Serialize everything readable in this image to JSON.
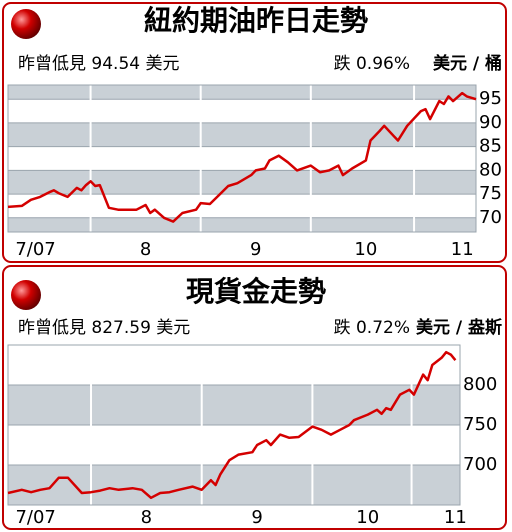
{
  "chart_data": [
    {
      "type": "line",
      "title": "紐約期油昨日走勢",
      "subtitle": "昨曾低見 94.54 美元",
      "change": "跌 0.96%",
      "unit": "美元 / 桶",
      "x": [
        0,
        3,
        5,
        7,
        9,
        10,
        11,
        13,
        15,
        16,
        17,
        18,
        19,
        20,
        22,
        24,
        28,
        30,
        31,
        32,
        34,
        36,
        38,
        41,
        42,
        44,
        46,
        48,
        50,
        53,
        54,
        56,
        57,
        59,
        61,
        63,
        66,
        68,
        70,
        72,
        73,
        75,
        78,
        79,
        81,
        82,
        84,
        85,
        87,
        90,
        91,
        92,
        94,
        95,
        96,
        97,
        99,
        100,
        102
      ],
      "series": [
        {
          "color": "#d40000",
          "values": [
            72.3,
            72.5,
            73.8,
            74.4,
            75.4,
            75.8,
            75.2,
            74.4,
            76.3,
            75.8,
            76.9,
            77.7,
            76.7,
            76.9,
            72.1,
            71.7,
            71.7,
            72.7,
            71.0,
            71.7,
            70.0,
            69.2,
            71.0,
            71.7,
            73.1,
            72.9,
            74.8,
            76.7,
            77.3,
            79.0,
            80.0,
            80.4,
            82.1,
            83.1,
            81.7,
            80.0,
            81.0,
            79.6,
            80.0,
            81.0,
            79.0,
            80.4,
            82.1,
            86.3,
            88.3,
            89.4,
            87.3,
            86.3,
            89.4,
            92.5,
            92.9,
            90.8,
            94.6,
            94.0,
            95.6,
            94.6,
            96.3,
            95.6,
            95.0
          ]
        }
      ],
      "xlim": [
        0,
        102
      ],
      "xticks": [
        {
          "value": 6,
          "label": "7/07"
        },
        {
          "value": 30,
          "label": "8"
        },
        {
          "value": 54,
          "label": "9"
        },
        {
          "value": 78,
          "label": "10"
        },
        {
          "value": 99,
          "label": "11"
        }
      ],
      "ylim": [
        67,
        98
      ],
      "yticks": [
        95,
        90,
        85,
        80,
        75,
        70
      ],
      "grid": true
    },
    {
      "type": "line",
      "title": "現貨金走勢",
      "subtitle": "昨曾低見 827.59 美元",
      "change": "跌 0.72%",
      "unit": "美元 / 盎斯",
      "x": [
        0,
        3,
        5,
        7,
        9,
        11,
        13,
        16,
        18,
        20,
        22,
        24,
        27,
        29,
        31,
        33,
        35,
        37,
        40,
        42,
        44,
        45,
        46,
        48,
        50,
        53,
        54,
        56,
        57,
        59,
        61,
        63,
        66,
        68,
        70,
        72,
        74,
        75,
        78,
        80,
        81,
        82,
        83,
        85,
        87,
        88,
        90,
        91,
        92,
        94,
        95,
        96,
        97
      ],
      "series": [
        {
          "color": "#d40000",
          "values": [
            665,
            669,
            666,
            669,
            671,
            684,
            684,
            665,
            666,
            668,
            671,
            669,
            671,
            669,
            659,
            665,
            666,
            669,
            673,
            669,
            681,
            675,
            688,
            706,
            713,
            716,
            725,
            731,
            725,
            738,
            734,
            735,
            748,
            744,
            738,
            744,
            750,
            756,
            763,
            769,
            764,
            771,
            769,
            788,
            794,
            788,
            813,
            806,
            825,
            834,
            841,
            838,
            831
          ]
        }
      ],
      "xlim": [
        0,
        98
      ],
      "xticks": [
        {
          "value": 6,
          "label": "7/07"
        },
        {
          "value": 30,
          "label": "8"
        },
        {
          "value": 54,
          "label": "9"
        },
        {
          "value": 78,
          "label": "10"
        },
        {
          "value": 97,
          "label": "11"
        }
      ],
      "ylim": [
        650,
        850
      ],
      "yticks": [
        800,
        750,
        700
      ],
      "grid": true
    }
  ]
}
